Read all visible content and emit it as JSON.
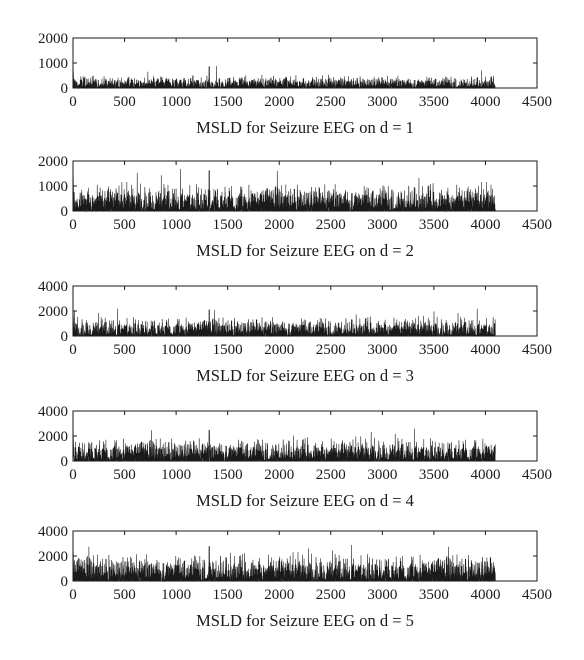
{
  "chart_data": [
    {
      "type": "line",
      "xlabel": "MSLD for Seizure EEG on d = 1",
      "ylabel": "",
      "xlim": [
        0,
        4500
      ],
      "ylim": [
        0,
        2000
      ],
      "xticks": [
        "0",
        "500",
        "1000",
        "1500",
        "2000",
        "2500",
        "3000",
        "3500",
        "4000",
        "4500"
      ],
      "yticks": [
        "0",
        "1000",
        "2000"
      ],
      "series": [
        {
          "name": "",
          "x_range": [
            1,
            4096
          ],
          "n_points": 4096,
          "typical_peak": 450,
          "max_value": 900,
          "color": "#1a1a1a"
        }
      ]
    },
    {
      "type": "line",
      "xlabel": "MSLD for Seizure EEG on d = 2",
      "ylabel": "",
      "xlim": [
        0,
        4500
      ],
      "ylim": [
        0,
        2000
      ],
      "xticks": [
        "0",
        "500",
        "1000",
        "1500",
        "2000",
        "2500",
        "3000",
        "3500",
        "4000",
        "4500"
      ],
      "yticks": [
        "0",
        "1000",
        "2000"
      ],
      "series": [
        {
          "name": "",
          "x_range": [
            1,
            4096
          ],
          "n_points": 4096,
          "typical_peak": 1000,
          "max_value": 1700,
          "color": "#1a1a1a"
        }
      ]
    },
    {
      "type": "line",
      "xlabel": "MSLD for Seizure EEG on d = 3",
      "ylabel": "",
      "xlim": [
        0,
        4500
      ],
      "ylim": [
        0,
        4000
      ],
      "xticks": [
        "0",
        "500",
        "1000",
        "1500",
        "2000",
        "2500",
        "3000",
        "3500",
        "4000",
        "4500"
      ],
      "yticks": [
        "0",
        "2000",
        "4000"
      ],
      "series": [
        {
          "name": "",
          "x_range": [
            1,
            4096
          ],
          "n_points": 4096,
          "typical_peak": 1400,
          "max_value": 2200,
          "color": "#1a1a1a"
        }
      ]
    },
    {
      "type": "line",
      "xlabel": "MSLD for Seizure EEG on d = 4",
      "ylabel": "",
      "xlim": [
        0,
        4500
      ],
      "ylim": [
        0,
        4000
      ],
      "xticks": [
        "0",
        "500",
        "1000",
        "1500",
        "2000",
        "2500",
        "3000",
        "3500",
        "4000",
        "4500"
      ],
      "yticks": [
        "0",
        "2000",
        "4000"
      ],
      "series": [
        {
          "name": "",
          "x_range": [
            1,
            4096
          ],
          "n_points": 4096,
          "typical_peak": 1700,
          "max_value": 2600,
          "color": "#1a1a1a"
        }
      ]
    },
    {
      "type": "line",
      "xlabel": "MSLD for Seizure EEG on d = 5",
      "ylabel": "",
      "xlim": [
        0,
        4500
      ],
      "ylim": [
        0,
        4000
      ],
      "xticks": [
        "0",
        "500",
        "1000",
        "1500",
        "2000",
        "2500",
        "3000",
        "3500",
        "4000",
        "4500"
      ],
      "yticks": [
        "0",
        "2000",
        "4000"
      ],
      "series": [
        {
          "name": "",
          "x_range": [
            1,
            4096
          ],
          "n_points": 4096,
          "typical_peak": 2000,
          "max_value": 2900,
          "color": "#1a1a1a"
        }
      ]
    }
  ]
}
